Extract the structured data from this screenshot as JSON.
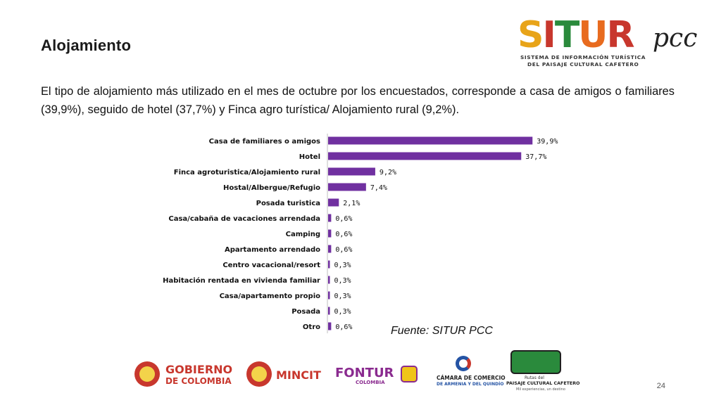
{
  "title": "Alojamiento",
  "paragraph": "El tipo de alojamiento más utilizado en el mes de octubre por los encuestados, corresponde a  casa de amigos o familiares (39,9%), seguido de hotel (37,7%) y Finca agro turística/ Alojamiento rural (9,2%).",
  "logo": {
    "letters": [
      "S",
      "I",
      "T",
      "U",
      "R"
    ],
    "letter_colors": [
      "#e8a419",
      "#c8372d",
      "#2a8a3c",
      "#e86b1f",
      "#c8372d"
    ],
    "pcc": "pcc",
    "subtitle_1": "SISTEMA DE INFORMACIÓN TURÍSTICA",
    "subtitle_2": "DEL PAISAJE CULTURAL CAFETERO"
  },
  "chart_data": {
    "type": "bar",
    "orientation": "horizontal",
    "categories": [
      "Casa de familiares o amigos",
      "Hotel",
      "Finca agroturistica/Alojamiento rural",
      "Hostal/Albergue/Refugio",
      "Posada turistica",
      "Casa/cabaña de vacaciones arrendada",
      "Camping",
      "Apartamento arrendado",
      "Centro vacacional/resort",
      "Habitación rentada en vivienda familiar",
      "Casa/apartamento propio",
      "Posada",
      "Otro"
    ],
    "values": [
      39.9,
      37.7,
      9.2,
      7.4,
      2.1,
      0.6,
      0.6,
      0.6,
      0.3,
      0.3,
      0.3,
      0.3,
      0.6
    ],
    "value_labels": [
      "39,9%",
      "37,7%",
      "9,2%",
      "7,4%",
      "2,1%",
      "0,6%",
      "0,6%",
      "0,6%",
      "0,3%",
      "0,3%",
      "0,3%",
      "0,3%",
      "0,6%"
    ],
    "bar_color": "#7030a0",
    "xlim": [
      0,
      40
    ],
    "grid": false,
    "legend": "none"
  },
  "source": "Fuente: SITUR PCC",
  "footer": {
    "gobierno_line1": "GOBIERNO",
    "gobierno_line2": "DE COLOMBIA",
    "mincit": "MINCIT",
    "fontur": "FONTUR",
    "fontur_sub": "COLOMBIA",
    "camara_line1": "CÁMARA DE COMERCIO",
    "camara_line2": "DE ARMENIA Y DEL QUINDÍO",
    "rutas_line1": "Rutas del",
    "rutas_line2": "PAISAJE CULTURAL CAFETERO",
    "rutas_line3": "Mil experiencias, un destino"
  },
  "page_number": "24"
}
